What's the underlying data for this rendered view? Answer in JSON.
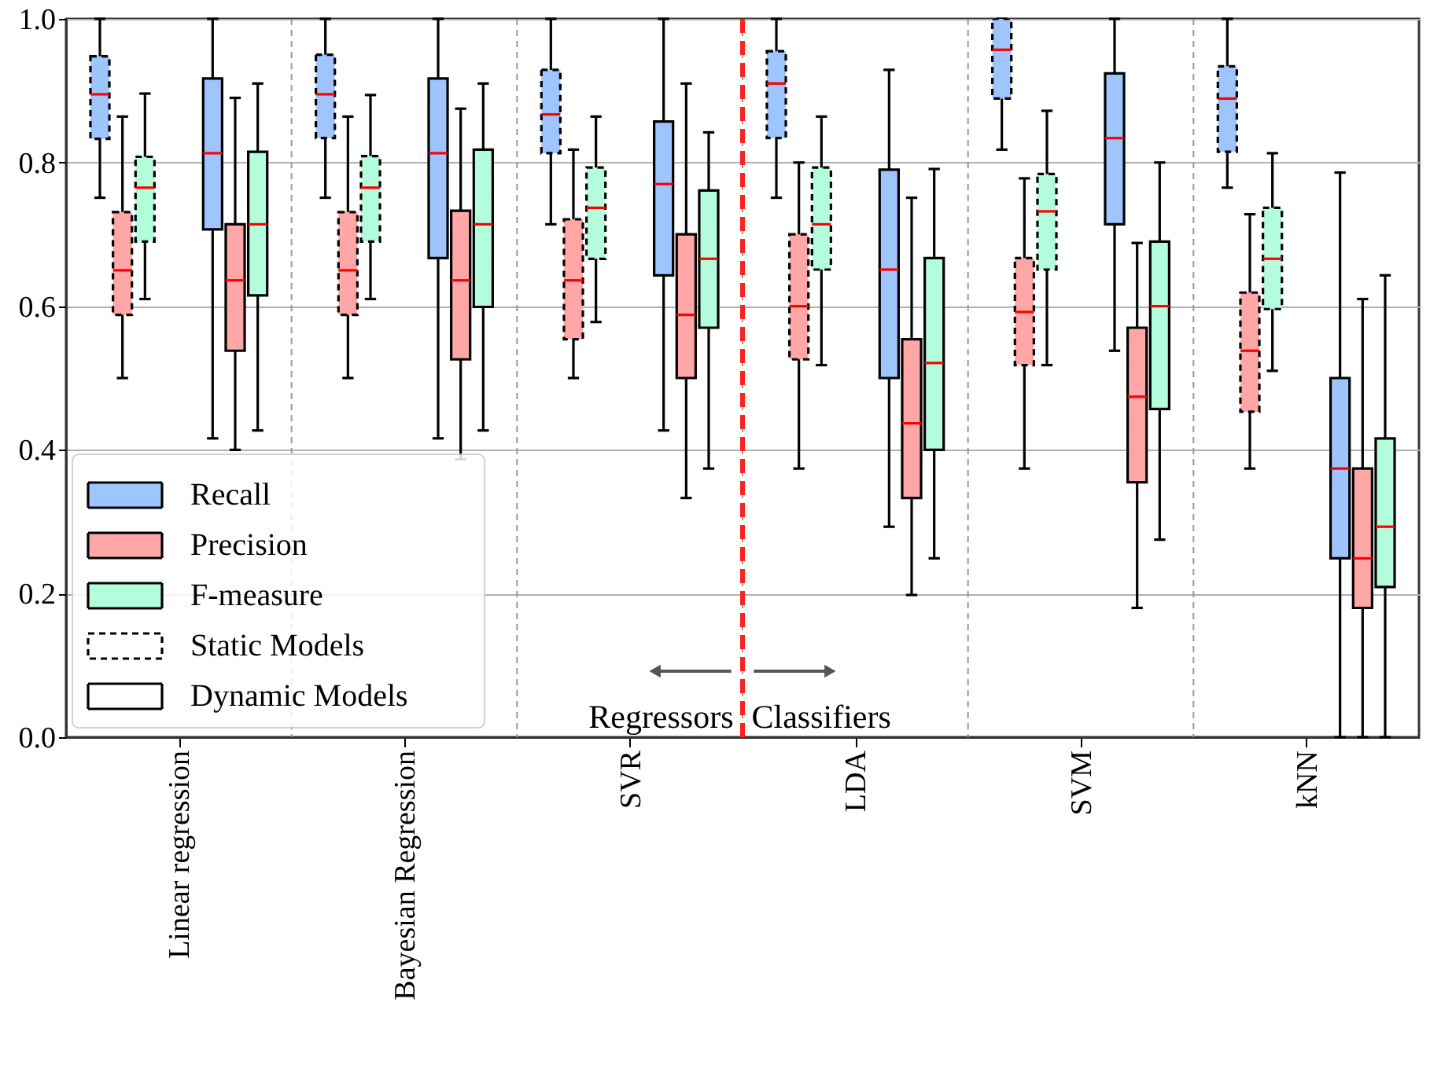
{
  "chart_data": {
    "type": "box",
    "categories": [
      "Linear regression",
      "Bayesian Regression",
      "SVR",
      "LDA",
      "SVM",
      "kNN"
    ],
    "series": [
      {
        "name": "Recall",
        "color": "#9ec5fe",
        "line_style": "dashed",
        "boxes": [
          {
            "low": 0.751,
            "q1": 0.833,
            "median": 0.895,
            "q3": 0.948,
            "high": 1.0
          },
          {
            "low": 0.751,
            "q1": 0.834,
            "median": 0.895,
            "q3": 0.95,
            "high": 1.0
          },
          {
            "low": 0.714,
            "q1": 0.813,
            "median": 0.867,
            "q3": 0.929,
            "high": 1.0
          },
          {
            "low": 0.751,
            "q1": 0.834,
            "median": 0.91,
            "q3": 0.955,
            "high": 1.0
          },
          {
            "low": 0.818,
            "q1": 0.889,
            "median": 0.957,
            "q3": 1.0,
            "high": 1.0
          },
          {
            "low": 0.765,
            "q1": 0.815,
            "median": 0.889,
            "q3": 0.934,
            "high": 1.0
          }
        ]
      },
      {
        "name": "Precision",
        "color": "#ffa6a6",
        "line_style": "dashed",
        "boxes": [
          {
            "low": 0.5,
            "q1": 0.588,
            "median": 0.65,
            "q3": 0.731,
            "high": 0.864
          },
          {
            "low": 0.5,
            "q1": 0.588,
            "median": 0.65,
            "q3": 0.731,
            "high": 0.864
          },
          {
            "low": 0.5,
            "q1": 0.554,
            "median": 0.636,
            "q3": 0.721,
            "high": 0.818
          },
          {
            "low": 0.374,
            "q1": 0.526,
            "median": 0.6,
            "q3": 0.7,
            "high": 0.8
          },
          {
            "low": 0.374,
            "q1": 0.518,
            "median": 0.592,
            "q3": 0.667,
            "high": 0.778
          },
          {
            "low": 0.374,
            "q1": 0.453,
            "median": 0.538,
            "q3": 0.619,
            "high": 0.728
          }
        ]
      },
      {
        "name": "F-measure",
        "color": "#b3fcdc",
        "line_style": "dashed",
        "boxes": [
          {
            "low": 0.61,
            "q1": 0.69,
            "median": 0.765,
            "q3": 0.808,
            "high": 0.896
          },
          {
            "low": 0.61,
            "q1": 0.69,
            "median": 0.765,
            "q3": 0.809,
            "high": 0.894
          },
          {
            "low": 0.578,
            "q1": 0.666,
            "median": 0.737,
            "q3": 0.793,
            "high": 0.864
          },
          {
            "low": 0.518,
            "q1": 0.651,
            "median": 0.714,
            "q3": 0.793,
            "high": 0.864
          },
          {
            "low": 0.518,
            "q1": 0.651,
            "median": 0.732,
            "q3": 0.784,
            "high": 0.872
          },
          {
            "low": 0.51,
            "q1": 0.596,
            "median": 0.666,
            "q3": 0.737,
            "high": 0.813
          }
        ]
      },
      {
        "color": "#9ec5fe",
        "line_style": "solid",
        "boxes": [
          {
            "low": 0.416,
            "q1": 0.707,
            "median": 0.813,
            "q3": 0.917,
            "high": 1.0
          },
          {
            "low": 0.416,
            "q1": 0.667,
            "median": 0.813,
            "q3": 0.917,
            "high": 1.0
          },
          {
            "low": 0.427,
            "q1": 0.643,
            "median": 0.77,
            "q3": 0.857,
            "high": 1.0
          },
          {
            "low": 0.293,
            "q1": 0.5,
            "median": 0.651,
            "q3": 0.79,
            "high": 0.929
          },
          {
            "low": 0.538,
            "q1": 0.714,
            "median": 0.834,
            "q3": 0.924,
            "high": 1.0
          },
          {
            "low": 0.0,
            "q1": 0.249,
            "median": 0.374,
            "q3": 0.5,
            "high": 0.786
          }
        ]
      },
      {
        "color": "#ffa6a6",
        "line_style": "solid",
        "boxes": [
          {
            "low": 0.4,
            "q1": 0.538,
            "median": 0.636,
            "q3": 0.714,
            "high": 0.89
          },
          {
            "low": 0.387,
            "q1": 0.526,
            "median": 0.636,
            "q3": 0.733,
            "high": 0.875
          },
          {
            "low": 0.333,
            "q1": 0.5,
            "median": 0.588,
            "q3": 0.7,
            "high": 0.91
          },
          {
            "low": 0.198,
            "q1": 0.333,
            "median": 0.437,
            "q3": 0.554,
            "high": 0.751
          },
          {
            "low": 0.18,
            "q1": 0.355,
            "median": 0.474,
            "q3": 0.57,
            "high": 0.688
          },
          {
            "low": 0.0,
            "q1": 0.18,
            "median": 0.249,
            "q3": 0.374,
            "high": 0.61
          }
        ]
      },
      {
        "color": "#b3fcdc",
        "line_style": "solid",
        "boxes": [
          {
            "low": 0.427,
            "q1": 0.615,
            "median": 0.714,
            "q3": 0.815,
            "high": 0.91
          },
          {
            "low": 0.427,
            "q1": 0.599,
            "median": 0.714,
            "q3": 0.818,
            "high": 0.91
          },
          {
            "low": 0.374,
            "q1": 0.57,
            "median": 0.666,
            "q3": 0.761,
            "high": 0.842
          },
          {
            "low": 0.249,
            "q1": 0.4,
            "median": 0.521,
            "q3": 0.667,
            "high": 0.791
          },
          {
            "low": 0.275,
            "q1": 0.457,
            "median": 0.6,
            "q3": 0.69,
            "high": 0.8
          },
          {
            "low": 0.0,
            "q1": 0.209,
            "median": 0.293,
            "q3": 0.416,
            "high": 0.643
          }
        ]
      }
    ],
    "ylim": [
      0,
      1
    ],
    "yticks": [
      {
        "value": 0,
        "label": "0.0"
      },
      0.2,
      0.4,
      0.6,
      0.8,
      {
        "value": 1,
        "label": "1.0"
      }
    ],
    "grid": "y",
    "legend": "bottom left",
    "ref_lines": [
      {
        "axis": "x",
        "value": "LDA",
        "color": "#ff2020",
        "line_style": "dashed"
      }
    ],
    "annotations": [
      "Static Models",
      "Dynamic Models",
      "Regressors",
      "Classifiers"
    ]
  }
}
